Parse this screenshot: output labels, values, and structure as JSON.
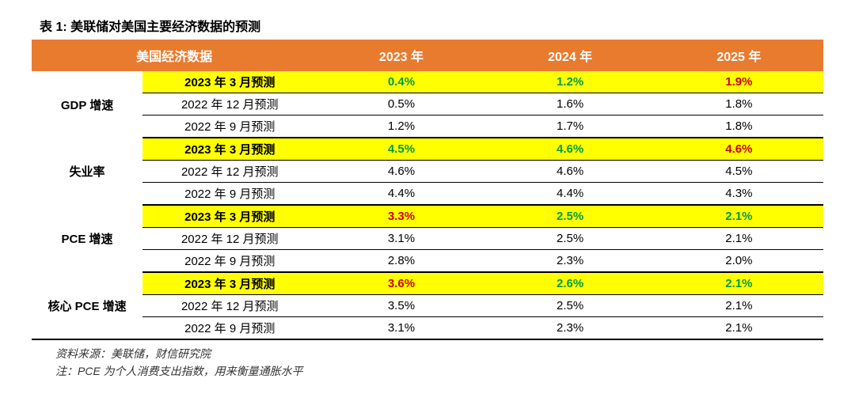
{
  "title": "表 1:  美联储对美国主要经济数据的预测",
  "header_bg": "#e97b2f",
  "highlight_bg": "#ffff00",
  "columns": [
    "美国经济数据",
    "2023 年",
    "2024 年",
    "2025 年"
  ],
  "groups": [
    {
      "label": "GDP 增速",
      "rows": [
        {
          "forecast": "2023 年 3 月预测",
          "vals": [
            "0.4%",
            "1.2%",
            "1.9%"
          ],
          "hl": true,
          "colors": [
            "green",
            "green",
            "red"
          ]
        },
        {
          "forecast": "2022 年 12 月预测",
          "vals": [
            "0.5%",
            "1.6%",
            "1.8%"
          ],
          "hl": false,
          "colors": [
            "",
            "",
            ""
          ]
        },
        {
          "forecast": "2022 年 9 月预测",
          "vals": [
            "1.2%",
            "1.7%",
            "1.8%"
          ],
          "hl": false,
          "colors": [
            "",
            "",
            ""
          ]
        }
      ]
    },
    {
      "label": "失业率",
      "rows": [
        {
          "forecast": "2023 年 3 月预测",
          "vals": [
            "4.5%",
            "4.6%",
            "4.6%"
          ],
          "hl": true,
          "colors": [
            "green",
            "green",
            "red"
          ]
        },
        {
          "forecast": "2022 年 12 月预测",
          "vals": [
            "4.6%",
            "4.6%",
            "4.5%"
          ],
          "hl": false,
          "colors": [
            "",
            "",
            ""
          ]
        },
        {
          "forecast": "2022 年 9 月预测",
          "vals": [
            "4.4%",
            "4.4%",
            "4.3%"
          ],
          "hl": false,
          "colors": [
            "",
            "",
            ""
          ]
        }
      ]
    },
    {
      "label": "PCE 增速",
      "rows": [
        {
          "forecast": "2023 年 3 月预测",
          "vals": [
            "3.3%",
            "2.5%",
            "2.1%"
          ],
          "hl": true,
          "colors": [
            "red",
            "green",
            "green"
          ]
        },
        {
          "forecast": "2022 年 12 月预测",
          "vals": [
            "3.1%",
            "2.5%",
            "2.1%"
          ],
          "hl": false,
          "colors": [
            "",
            "",
            ""
          ]
        },
        {
          "forecast": "2022 年 9 月预测",
          "vals": [
            "2.8%",
            "2.3%",
            "2.0%"
          ],
          "hl": false,
          "colors": [
            "",
            "",
            ""
          ]
        }
      ]
    },
    {
      "label": "核心 PCE 增速",
      "rows": [
        {
          "forecast": "2023 年 3 月预测",
          "vals": [
            "3.6%",
            "2.6%",
            "2.1%"
          ],
          "hl": true,
          "colors": [
            "red",
            "green",
            "green"
          ]
        },
        {
          "forecast": "2022 年 12 月预测",
          "vals": [
            "3.5%",
            "2.5%",
            "2.1%"
          ],
          "hl": false,
          "colors": [
            "",
            "",
            ""
          ]
        },
        {
          "forecast": "2022 年 9 月预测",
          "vals": [
            "3.1%",
            "2.3%",
            "2.1%"
          ],
          "hl": false,
          "colors": [
            "",
            "",
            ""
          ]
        }
      ]
    }
  ],
  "footer1": "资料来源：美联储，财信研究院",
  "footer2": "注：PCE 为个人消费支出指数，用来衡量通胀水平"
}
